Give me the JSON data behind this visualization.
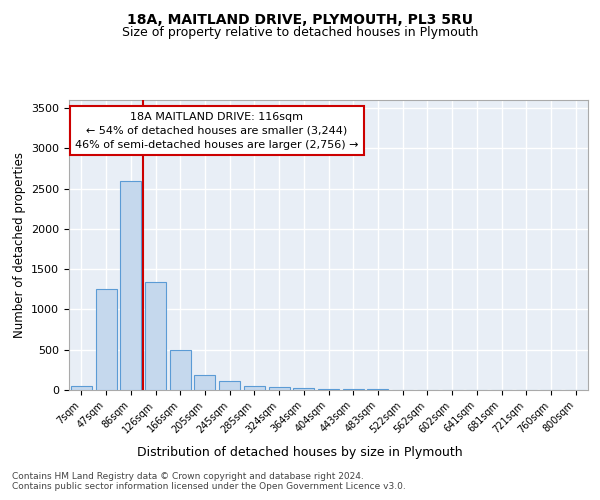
{
  "title1": "18A, MAITLAND DRIVE, PLYMOUTH, PL3 5RU",
  "title2": "Size of property relative to detached houses in Plymouth",
  "xlabel": "Distribution of detached houses by size in Plymouth",
  "ylabel": "Number of detached properties",
  "bar_labels": [
    "7sqm",
    "47sqm",
    "86sqm",
    "126sqm",
    "166sqm",
    "205sqm",
    "245sqm",
    "285sqm",
    "324sqm",
    "364sqm",
    "404sqm",
    "443sqm",
    "483sqm",
    "522sqm",
    "562sqm",
    "602sqm",
    "641sqm",
    "681sqm",
    "721sqm",
    "760sqm",
    "800sqm"
  ],
  "bar_values": [
    50,
    1250,
    2600,
    1340,
    500,
    185,
    110,
    50,
    35,
    20,
    8,
    18,
    18,
    0,
    0,
    0,
    0,
    0,
    0,
    0,
    0
  ],
  "bar_color": "#c5d8ed",
  "bar_edge_color": "#5b9bd5",
  "vline_color": "#cc0000",
  "annotation_line1": "18A MAITLAND DRIVE: 116sqm",
  "annotation_line2": "← 54% of detached houses are smaller (3,244)",
  "annotation_line3": "46% of semi-detached houses are larger (2,756) →",
  "annotation_box_color": "#ffffff",
  "annotation_box_edge": "#cc0000",
  "ylim": [
    0,
    3600
  ],
  "yticks": [
    0,
    500,
    1000,
    1500,
    2000,
    2500,
    3000,
    3500
  ],
  "bg_color": "#e8eef6",
  "grid_color": "#ffffff",
  "footer1": "Contains HM Land Registry data © Crown copyright and database right 2024.",
  "footer2": "Contains public sector information licensed under the Open Government Licence v3.0."
}
